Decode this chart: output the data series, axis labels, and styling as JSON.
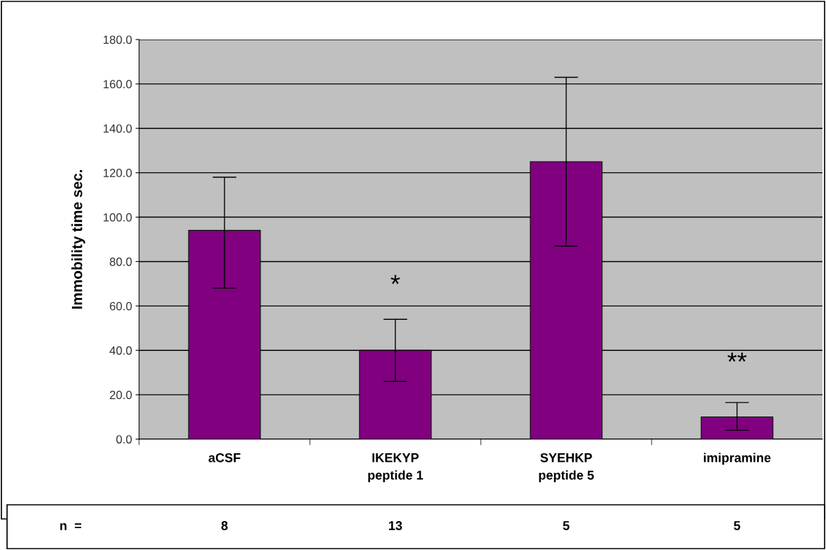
{
  "chart_data": {
    "type": "bar",
    "ylabel": "Immobility time sec.",
    "categories": [
      "aCSF",
      "IKEKYP\npeptide 1",
      "SYEHKP\npeptide 5",
      "imipramine"
    ],
    "values": [
      94,
      40,
      125,
      10
    ],
    "errors": [
      [
        68,
        118
      ],
      [
        26,
        54
      ],
      [
        87,
        163
      ],
      [
        4,
        16.5
      ]
    ],
    "color": "#800080",
    "ylim": [
      0,
      180
    ],
    "yticks": [
      {
        "value": 0,
        "label": "0.0"
      },
      {
        "value": 20,
        "label": "20.0"
      },
      {
        "value": 40,
        "label": "40.0"
      },
      {
        "value": 60,
        "label": "60.0"
      },
      {
        "value": 80,
        "label": "80.0"
      },
      {
        "value": 100,
        "label": "100.0"
      },
      {
        "value": 120,
        "label": "120.0"
      },
      {
        "value": 140,
        "label": "140.0"
      },
      {
        "value": 160,
        "label": "160.0"
      },
      {
        "value": 180,
        "label": "180.0"
      }
    ],
    "grid": "y",
    "annotations": [
      "*",
      "**",
      "n  =",
      "8",
      "13",
      "5",
      "5"
    ]
  }
}
